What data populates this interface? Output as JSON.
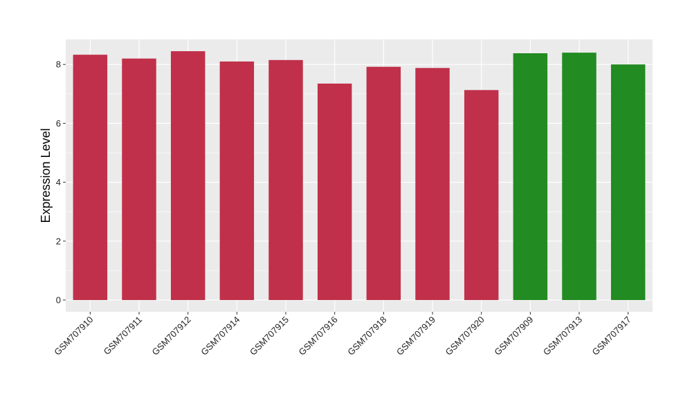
{
  "chart_data": {
    "type": "bar",
    "title": "",
    "xlabel": "",
    "ylabel": "Expression Level",
    "ylim": [
      -0.4,
      8.85
    ],
    "yticks": [
      0,
      2,
      4,
      6,
      8
    ],
    "grid": true,
    "legend": "none",
    "panel_background": "#EBEBEB",
    "grid_color": "#FFFFFF",
    "categories": [
      "GSM707910",
      "GSM707911",
      "GSM707912",
      "GSM707914",
      "GSM707915",
      "GSM707916",
      "GSM707918",
      "GSM707919",
      "GSM707920",
      "GSM707909",
      "GSM707913",
      "GSM707917"
    ],
    "values": [
      8.33,
      8.2,
      8.45,
      8.1,
      8.15,
      7.35,
      7.92,
      7.88,
      7.13,
      8.38,
      8.4,
      8.0
    ],
    "bar_colors": [
      "#C0304A",
      "#C0304A",
      "#C0304A",
      "#C0304A",
      "#C0304A",
      "#C0304A",
      "#C0304A",
      "#C0304A",
      "#C0304A",
      "#228B22",
      "#228B22",
      "#228B22"
    ]
  }
}
